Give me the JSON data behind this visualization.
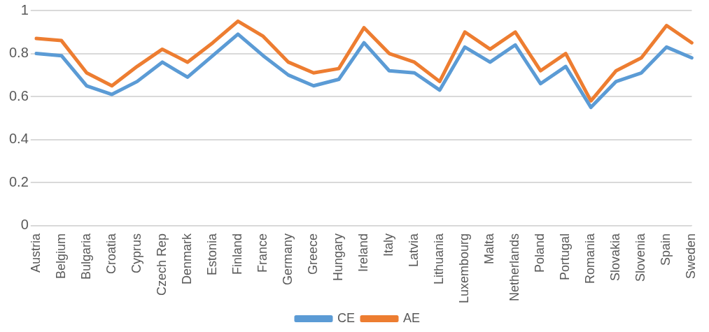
{
  "chart_data": {
    "type": "line",
    "categories": [
      "Austria",
      "Belgium",
      "Bulgaria",
      "Croatia",
      "Cyprus",
      "Czech Rep",
      "Denmark",
      "Estonia",
      "Finland",
      "France",
      "Germany",
      "Greece",
      "Hungary",
      "Ireland",
      "Italy",
      "Latvia",
      "Lithuania",
      "Luxembourg",
      "Malta",
      "Netherlands",
      "Poland",
      "Portugal",
      "Romania",
      "Slovakia",
      "Slovenia",
      "Spain",
      "Sweden"
    ],
    "series": [
      {
        "name": "CE",
        "color": "#5b9bd5",
        "values": [
          0.8,
          0.79,
          0.65,
          0.61,
          0.67,
          0.76,
          0.69,
          0.79,
          0.89,
          0.79,
          0.7,
          0.65,
          0.68,
          0.85,
          0.72,
          0.71,
          0.63,
          0.83,
          0.76,
          0.84,
          0.66,
          0.74,
          0.55,
          0.67,
          0.71,
          0.83,
          0.78
        ]
      },
      {
        "name": "AE",
        "color": "#ed7d31",
        "values": [
          0.87,
          0.86,
          0.71,
          0.65,
          0.74,
          0.82,
          0.76,
          0.85,
          0.95,
          0.88,
          0.76,
          0.71,
          0.73,
          0.92,
          0.8,
          0.76,
          0.67,
          0.9,
          0.82,
          0.9,
          0.72,
          0.8,
          0.58,
          0.72,
          0.78,
          0.93,
          0.85
        ]
      }
    ],
    "ylim": [
      0,
      1
    ],
    "yticks": [
      0,
      {
        "value": 0.2,
        "label": "0.2"
      },
      {
        "value": 0.4,
        "label": "0.4"
      },
      {
        "value": 0.6,
        "label": "0.6"
      },
      {
        "value": 0.8,
        "label": "0.8"
      },
      1
    ],
    "grid": "y",
    "legend": "bottom",
    "marker": "none"
  }
}
